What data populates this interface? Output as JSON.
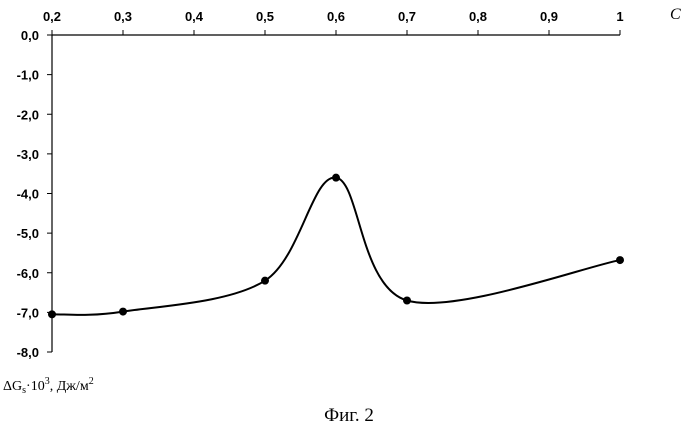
{
  "chart_data": {
    "type": "line",
    "x_axis_name": "C",
    "ylabel": "ΔG",
    "ylabel_sub": "s",
    "ylabel_mid": "·10",
    "ylabel_sup": "3",
    "ylabel_unit": ", Дж/м",
    "ylabel_unit_sup": "2",
    "caption": "Фиг. 2",
    "x_ticks": [
      "0,2",
      "0,3",
      "0,4",
      "0,5",
      "0,6",
      "0,7",
      "0,8",
      "0,9",
      "1"
    ],
    "y_ticks": [
      "0,0",
      "-1,0",
      "-2,0",
      "-3,0",
      "-4,0",
      "-5,0",
      "-6,0",
      "-7,0",
      "-8,0"
    ],
    "xlim": [
      0.2,
      1.0
    ],
    "ylim": [
      -8.0,
      0.0
    ],
    "x_position": "top",
    "grid": false,
    "smoothed": true,
    "points": [
      {
        "x": 0.2,
        "y": -7.05
      },
      {
        "x": 0.3,
        "y": -6.98
      },
      {
        "x": 0.5,
        "y": -6.2
      },
      {
        "x": 0.6,
        "y": -3.6
      },
      {
        "x": 0.7,
        "y": -6.7
      },
      {
        "x": 1.0,
        "y": -5.68
      }
    ]
  }
}
